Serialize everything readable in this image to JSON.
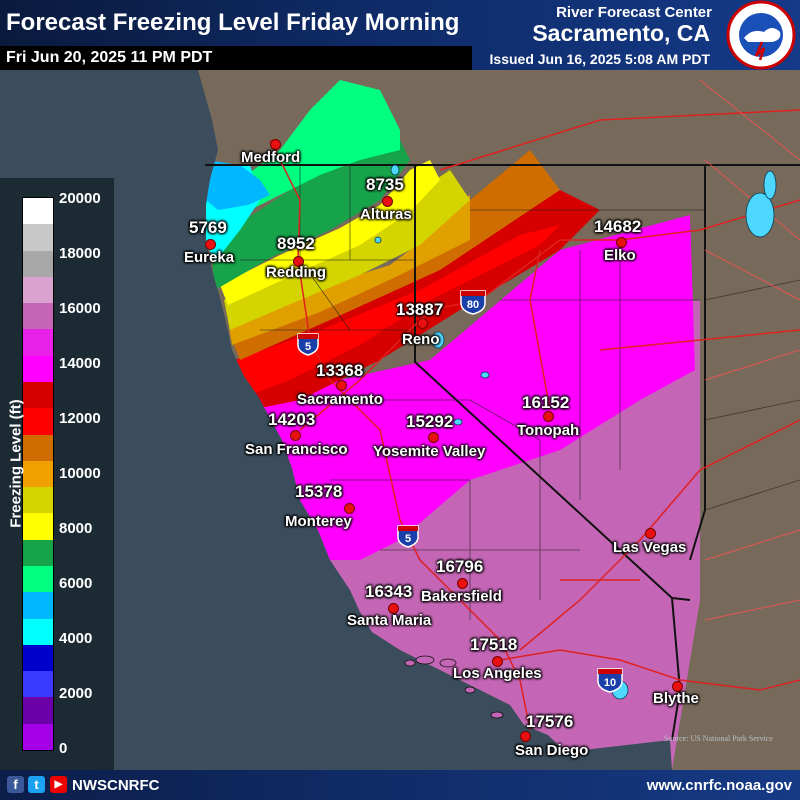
{
  "header": {
    "title": "Forecast Freezing Level Friday Morning",
    "valid_time": "Fri Jun 20, 2025 11 PM PDT",
    "office_line1": "River Forecast Center",
    "office_line2": "Sacramento, CA",
    "issued": "Issued Jun 16, 2025 5:08 AM PDT",
    "logo_text": "NATIONAL WEATHER SERVICE"
  },
  "legend": {
    "title": "Freezing Level (ft)",
    "ticks": [
      "20000",
      "18000",
      "16000",
      "14000",
      "12000",
      "10000",
      "8000",
      "6000",
      "4000",
      "2000",
      "0"
    ],
    "colors": [
      "#ffffff",
      "#c8c8c8",
      "#a8a8a8",
      "#d9a2cf",
      "#c466b5",
      "#e821e8",
      "#ff00ff",
      "#d60000",
      "#ff0000",
      "#cf6d00",
      "#f0a000",
      "#d4d400",
      "#ffff00",
      "#16a34a",
      "#00ff80",
      "#00b8ff",
      "#00ffff",
      "#0000cc",
      "#3a3aff",
      "#6b00a8",
      "#a400e8"
    ]
  },
  "cities": [
    {
      "name": "Medford",
      "value": ""
    },
    {
      "name": "Eureka",
      "value": "5769"
    },
    {
      "name": "Redding",
      "value": "8952"
    },
    {
      "name": "Alturas",
      "value": "8735"
    },
    {
      "name": "Reno",
      "value": "13887"
    },
    {
      "name": "Elko",
      "value": "14682"
    },
    {
      "name": "Sacramento",
      "value": "13368"
    },
    {
      "name": "San Francisco",
      "value": "14203"
    },
    {
      "name": "Yosemite Valley",
      "value": "15292"
    },
    {
      "name": "Tonopah",
      "value": "16152"
    },
    {
      "name": "Monterey",
      "value": "15378"
    },
    {
      "name": "Las Vegas",
      "value": ""
    },
    {
      "name": "Bakersfield",
      "value": "16796"
    },
    {
      "name": "Santa Maria",
      "value": "16343"
    },
    {
      "name": "Los Angeles",
      "value": "17518"
    },
    {
      "name": "Blythe",
      "value": ""
    },
    {
      "name": "San Diego",
      "value": "17576"
    }
  ],
  "interstates": [
    {
      "number": "80"
    },
    {
      "number": "5"
    },
    {
      "number": "5"
    },
    {
      "number": "10"
    }
  ],
  "credit": "Source: US National Park Service",
  "footer": {
    "handle": "NWSCNRFC",
    "website": "www.cnrfc.noaa.gov",
    "icons": [
      "facebook-icon",
      "twitter-icon",
      "youtube-icon"
    ]
  }
}
